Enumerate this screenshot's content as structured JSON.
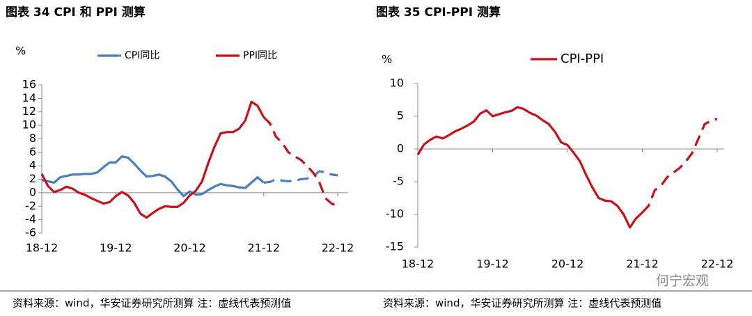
{
  "chart_data": [
    {
      "type": "line",
      "title": "图表 34 CPI 和 PPI 测算",
      "y_label": "%",
      "categories": [
        "18-12",
        null,
        null,
        null,
        null,
        null,
        null,
        null,
        null,
        null,
        null,
        null,
        "19-12",
        null,
        null,
        null,
        null,
        null,
        null,
        null,
        null,
        null,
        null,
        null,
        "20-12",
        null,
        null,
        null,
        null,
        null,
        null,
        null,
        null,
        null,
        null,
        null,
        "21-12",
        null,
        null,
        null,
        null,
        null,
        null,
        null,
        null,
        null,
        null,
        null,
        "22-12"
      ],
      "series": [
        {
          "name": "CPI同比",
          "color": "#4a7ebb",
          "values": [
            1.9,
            1.7,
            1.5,
            2.3,
            2.5,
            2.7,
            2.7,
            2.8,
            2.8,
            3.0,
            3.8,
            4.5,
            4.5,
            5.4,
            5.2,
            4.3,
            3.3,
            2.4,
            2.5,
            2.7,
            2.4,
            1.7,
            0.5,
            -0.5,
            0.2,
            -0.3,
            -0.2,
            0.4,
            0.9,
            1.3,
            1.1,
            1.0,
            0.8,
            0.7,
            1.5,
            2.3,
            1.5,
            1.6,
            2.0,
            1.8,
            1.7,
            1.8,
            2.0,
            2.1,
            2.4,
            3.2,
            3.0,
            2.7,
            2.6
          ]
        },
        {
          "name": "PPI同比",
          "color": "#c8101a",
          "values": [
            2.8,
            1.0,
            0.1,
            0.4,
            0.9,
            0.6,
            0.0,
            -0.3,
            -0.8,
            -1.2,
            -1.6,
            -1.4,
            -0.5,
            0.1,
            -0.4,
            -1.5,
            -3.1,
            -3.7,
            -3.0,
            -2.4,
            -2.0,
            -2.1,
            -2.1,
            -1.5,
            -0.4,
            0.3,
            1.7,
            4.4,
            6.8,
            8.8,
            9.0,
            9.0,
            9.5,
            10.7,
            13.5,
            12.9,
            11.2,
            10.3,
            8.3,
            7.4,
            6.0,
            5.4,
            4.9,
            4.0,
            3.0,
            1.6,
            -0.8,
            -1.6,
            -2.0
          ]
        }
      ],
      "ylim": [
        -6,
        16
      ],
      "yticks": [
        -6,
        -4,
        -2,
        0,
        2,
        4,
        6,
        8,
        10,
        12,
        14,
        16
      ],
      "forecast_from": 36,
      "legend": "top",
      "source": "资料来源：wind，华安证券研究所测算 注：虚线代表预测值"
    },
    {
      "type": "line",
      "title": "图表 35 CPI-PPI 测算",
      "y_label": "%",
      "categories": [
        "18-12",
        null,
        null,
        null,
        null,
        null,
        null,
        null,
        null,
        null,
        null,
        null,
        "19-12",
        null,
        null,
        null,
        null,
        null,
        null,
        null,
        null,
        null,
        null,
        null,
        "20-12",
        null,
        null,
        null,
        null,
        null,
        null,
        null,
        null,
        null,
        null,
        null,
        "21-12",
        null,
        null,
        null,
        null,
        null,
        null,
        null,
        null,
        null,
        null,
        null,
        "22-12"
      ],
      "series": [
        {
          "name": "CPI-PPI",
          "color": "#c8101a",
          "values": [
            -0.9,
            0.7,
            1.4,
            1.9,
            1.6,
            2.1,
            2.7,
            3.1,
            3.6,
            4.2,
            5.4,
            5.9,
            5.0,
            5.3,
            5.6,
            5.8,
            6.4,
            6.1,
            5.5,
            5.1,
            4.4,
            3.8,
            2.6,
            1.0,
            0.6,
            -0.6,
            -1.9,
            -4.0,
            -5.9,
            -7.5,
            -7.9,
            -8.0,
            -8.7,
            -10.0,
            -12.0,
            -10.6,
            -9.7,
            -8.7,
            -6.3,
            -5.6,
            -4.3,
            -3.6,
            -2.9,
            -1.9,
            -0.6,
            1.6,
            3.8,
            4.3,
            4.6
          ]
        }
      ],
      "ylim": [
        -15,
        10
      ],
      "yticks": [
        -15,
        -10,
        -5,
        0,
        5,
        10
      ],
      "forecast_from": 36,
      "legend": "top",
      "source": "资料来源：wind，华安证券研究所测算 注：虚线代表预测值"
    }
  ],
  "watermark": "何宁宏观"
}
